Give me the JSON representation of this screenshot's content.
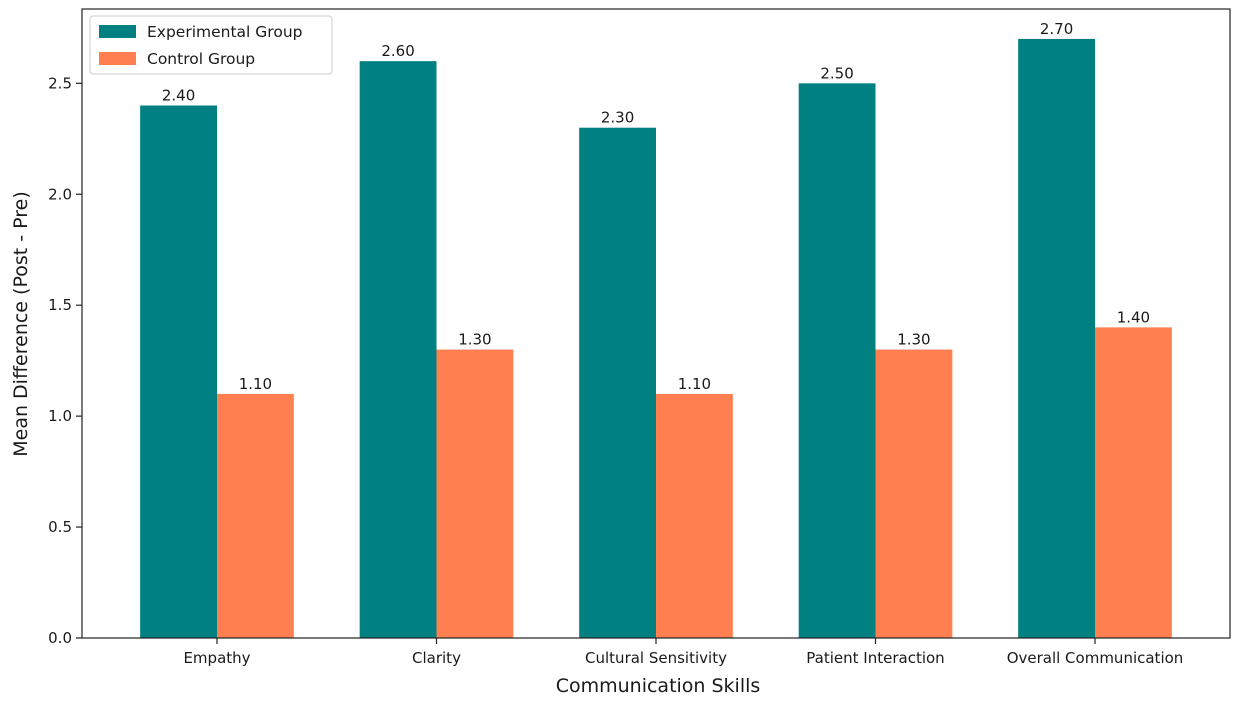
{
  "chart_data": {
    "type": "bar",
    "categories": [
      "Empathy",
      "Clarity",
      "Cultural Sensitivity",
      "Patient Interaction",
      "Overall Communication"
    ],
    "series": [
      {
        "name": "Experimental Group",
        "values": [
          2.4,
          2.6,
          2.3,
          2.5,
          2.7
        ],
        "color": "#008080"
      },
      {
        "name": "Control Group",
        "values": [
          1.1,
          1.3,
          1.1,
          1.3,
          1.4
        ],
        "color": "#FF7F50"
      }
    ],
    "xlabel": "Communication Skills",
    "ylabel": "Mean Difference (Post - Pre)",
    "ylim": [
      0,
      2.835
    ],
    "yticks": [
      0.0,
      0.5,
      1.0,
      1.5,
      2.0,
      2.5
    ],
    "value_label_format": "2 decimals",
    "legend": "top-left",
    "grid": false
  }
}
